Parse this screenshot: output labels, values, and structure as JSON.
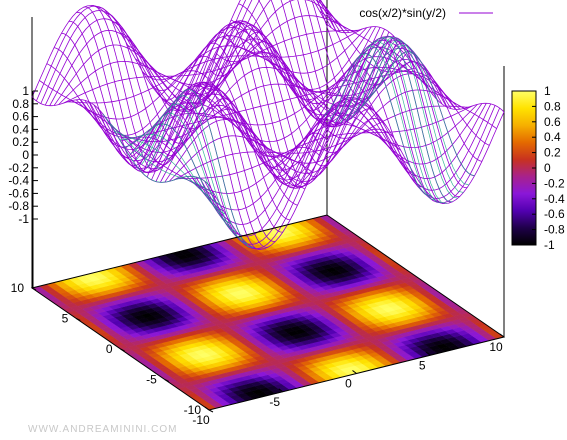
{
  "chart_data": {
    "type": "surface",
    "function": "cos(x/2)*sin(y/2)",
    "legend": {
      "label": "cos(x/2)*sin(y/2)",
      "position": "top-right",
      "color": "#9400d3"
    },
    "xlim": [
      -10,
      10
    ],
    "ylim": [
      -10,
      10
    ],
    "zlim": [
      -1,
      1
    ],
    "x_ticks": [
      "-10",
      "-5",
      "0",
      "5",
      "10"
    ],
    "y_ticks": [
      "-10",
      "-5",
      "0",
      "5",
      "10"
    ],
    "z_ticks": [
      "1",
      "0.8",
      "0.6",
      "0.4",
      "0.2",
      "0",
      "-0.2",
      "-0.4",
      "-0.6",
      "-0.8",
      "-1"
    ],
    "colorbox_ticks": [
      "1",
      "0.8",
      "0.6",
      "0.4",
      "0.2",
      "0",
      "-0.2",
      "-0.4",
      "-0.6",
      "-0.8",
      "-1"
    ],
    "colorbox_range": [
      -1,
      1
    ],
    "palette": [
      "#000000",
      "#1f004a",
      "#5200b0",
      "#8a17d8",
      "#a8228c",
      "#c8321f",
      "#e46a00",
      "#f6b000",
      "#ffe300",
      "#ffff66"
    ],
    "mesh_top_color": "#9400d3",
    "mesh_bottom_color": "#1aa888",
    "projection_map": true
  },
  "watermark": "WWW.ANDREAMININI.COM"
}
